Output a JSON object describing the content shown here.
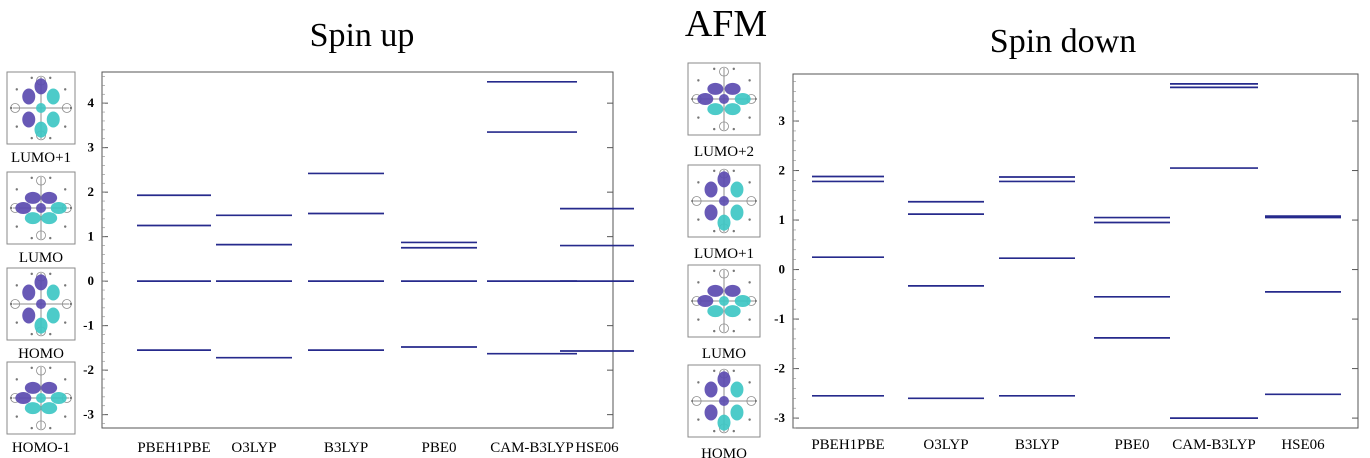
{
  "figure": {
    "main_title": "AFM"
  },
  "thumbnails_left": {
    "labels": [
      "LUMO+1",
      "LUMO",
      "HOMO",
      "HOMO-1"
    ]
  },
  "thumbnails_right": {
    "labels": [
      "LUMO+2",
      "LUMO+1",
      "LUMO",
      "HOMO"
    ]
  },
  "colors": {
    "level_line": "#262a8c",
    "lobe_purple": "#5b4bb0",
    "lobe_cyan": "#3ec7c4"
  },
  "chart_data": [
    {
      "type": "bar",
      "title": "Spin up",
      "categories": [
        "PBEH1PBE",
        "O3LYP",
        "B3LYP",
        "PBE0",
        "CAM-B3LYP",
        "HSE06"
      ],
      "series": [
        {
          "values": [
            -1.55,
            -1.72,
            -1.55,
            -1.48,
            -1.63,
            -1.57
          ]
        },
        {
          "values": [
            0,
            0,
            0,
            0,
            0,
            0
          ]
        },
        {
          "values": [
            1.25,
            0.82,
            1.52,
            0.75,
            3.35,
            0.8
          ]
        },
        {
          "values": [
            1.93,
            1.48,
            2.42,
            0.87,
            4.48,
            1.63
          ]
        }
      ],
      "yticks": [
        -3,
        -2,
        -1,
        0,
        1,
        2,
        3,
        4
      ],
      "ylim": [
        -3.3,
        4.7
      ],
      "grid": false
    },
    {
      "type": "bar",
      "title": "Spin down",
      "categories": [
        "PBEH1PBE",
        "O3LYP",
        "B3LYP",
        "PBE0",
        "CAM-B3LYP",
        "HSE06"
      ],
      "series": [
        {
          "values": [
            -2.55,
            -2.6,
            -2.55,
            -1.38,
            -3.0,
            -2.52
          ]
        },
        {
          "values": [
            0.25,
            -0.33,
            0.23,
            -0.55,
            2.05,
            -0.45
          ]
        },
        {
          "values": [
            1.78,
            1.12,
            1.78,
            0.95,
            3.68,
            1.05
          ]
        },
        {
          "values": [
            1.88,
            1.37,
            1.87,
            1.05,
            3.75,
            1.08
          ]
        }
      ],
      "yticks": [
        -3,
        -2,
        -1,
        0,
        1,
        2,
        3
      ],
      "ylim": [
        -3.2,
        3.95
      ],
      "grid": false
    }
  ]
}
